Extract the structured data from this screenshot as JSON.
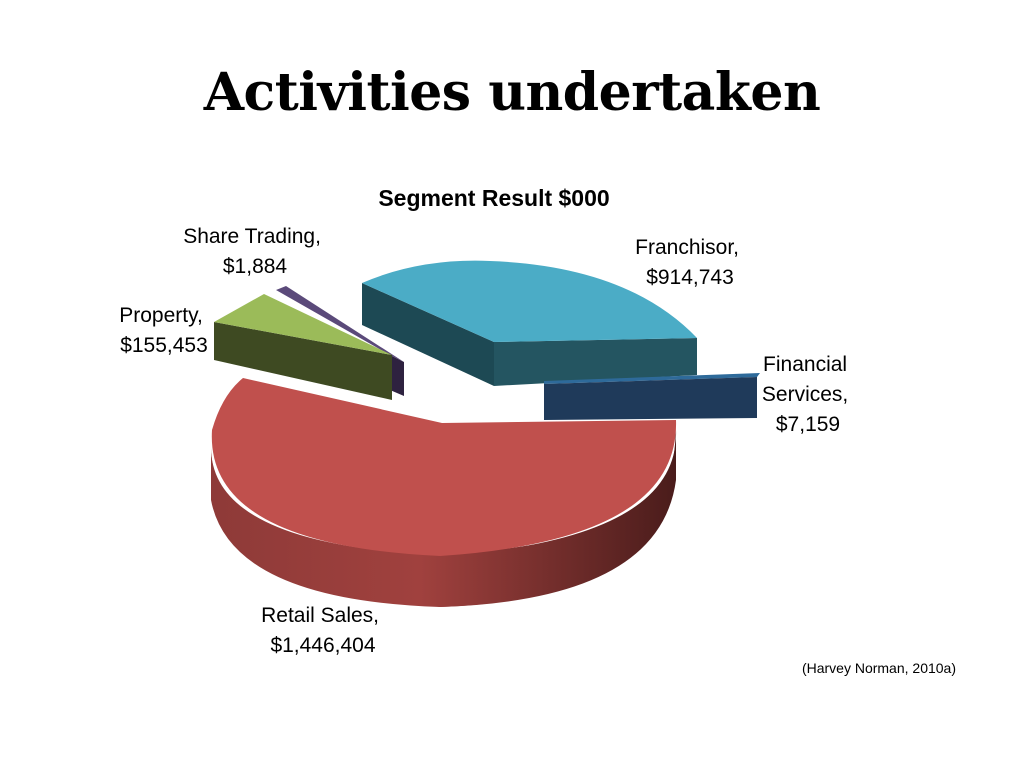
{
  "slide": {
    "title": "Activities undertaken",
    "source_note": "(Harvey Norman, 2010a)"
  },
  "chart_data": {
    "type": "pie",
    "title": "Segment Result $000",
    "style": "3d-exploded",
    "slices": [
      {
        "name": "Retail Sales",
        "value": 1446404,
        "label_line1": "Retail Sales,",
        "label_line2": "$1,446,404",
        "color": "#C0504D"
      },
      {
        "name": "Property",
        "value": 155453,
        "label_line1": "Property,",
        "label_line2": "$155,453",
        "color": "#9BBB59"
      },
      {
        "name": "Share Trading",
        "value": 1884,
        "label_line1": "Share Trading,",
        "label_line2": "$1,884",
        "color": "#4F3A6B"
      },
      {
        "name": "Franchisor",
        "value": 914743,
        "label_line1": "Franchisor,",
        "label_line2": "$914,743",
        "color": "#4BACC6"
      },
      {
        "name": "Financial Services",
        "value": 7159,
        "label_line1": "Financial",
        "label_line2": "Services,",
        "label_line3": "$7,159",
        "color": "#1F3A5A"
      }
    ]
  }
}
